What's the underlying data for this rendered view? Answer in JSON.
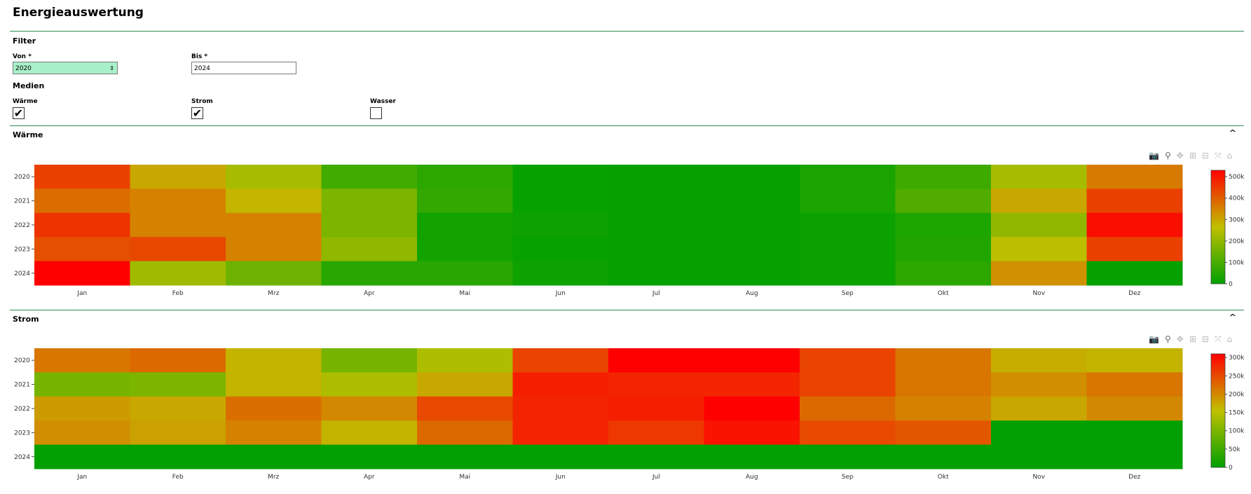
{
  "header": {
    "title": "Energieauswertung"
  },
  "filter": {
    "heading": "Filter",
    "from": {
      "label": "Von *",
      "value": "2020"
    },
    "to": {
      "label": "Bis *",
      "value": "2024"
    },
    "media_heading": "Medien",
    "media": [
      {
        "label": "Wärme",
        "checked": true
      },
      {
        "label": "Strom",
        "checked": true
      },
      {
        "label": "Wasser",
        "checked": false
      }
    ]
  },
  "toolbar_icons": [
    "camera-icon",
    "zoom-icon",
    "pan-icon",
    "zoom-in-icon",
    "zoom-out-icon",
    "autoscale-icon",
    "reset-axes-icon"
  ],
  "panels": [
    {
      "title": "Wärme"
    },
    {
      "title": "Strom"
    }
  ],
  "chart_data": [
    {
      "type": "heatmap",
      "title": "Wärme",
      "x": [
        "Jan",
        "Feb",
        "Mrz",
        "Apr",
        "Mai",
        "Jun",
        "Jul",
        "Aug",
        "Sep",
        "Okt",
        "Nov",
        "Dez"
      ],
      "y": [
        "2020",
        "2021",
        "2022",
        "2023",
        "2024"
      ],
      "z": [
        [
          440000,
          300000,
          230000,
          90000,
          60000,
          10000,
          5000,
          5000,
          35000,
          85000,
          230000,
          360000
        ],
        [
          380000,
          350000,
          280000,
          170000,
          70000,
          10000,
          5000,
          5000,
          35000,
          110000,
          300000,
          440000
        ],
        [
          460000,
          350000,
          350000,
          170000,
          25000,
          20000,
          5000,
          5000,
          15000,
          40000,
          200000,
          510000
        ],
        [
          420000,
          430000,
          350000,
          200000,
          25000,
          10000,
          5000,
          5000,
          15000,
          45000,
          260000,
          440000
        ],
        [
          530000,
          220000,
          150000,
          55000,
          55000,
          20000,
          5000,
          5000,
          15000,
          60000,
          330000,
          5000
        ]
      ],
      "zmin": 0,
      "zmax": 530000,
      "colorbar_ticks": [
        "0",
        "100k",
        "200k",
        "300k",
        "400k",
        "500k"
      ],
      "colorbar_values": [
        0,
        100000,
        200000,
        300000,
        400000,
        500000
      ],
      "colorscale": [
        "#00a000",
        "#c0c000",
        "#ff0000"
      ]
    },
    {
      "type": "heatmap",
      "title": "Strom",
      "x": [
        "Jan",
        "Feb",
        "Mrz",
        "Apr",
        "Mai",
        "Jun",
        "Jul",
        "Aug",
        "Sep",
        "Okt",
        "Nov",
        "Dez"
      ],
      "y": [
        "2020",
        "2021",
        "2022",
        "2023",
        "2024"
      ],
      "z": [
        [
          215000,
          225000,
          165000,
          95000,
          140000,
          255000,
          310000,
          310000,
          255000,
          215000,
          170000,
          165000
        ],
        [
          95000,
          100000,
          165000,
          140000,
          175000,
          285000,
          280000,
          280000,
          255000,
          215000,
          195000,
          215000
        ],
        [
          185000,
          175000,
          220000,
          200000,
          250000,
          280000,
          285000,
          310000,
          225000,
          205000,
          175000,
          200000
        ],
        [
          195000,
          180000,
          205000,
          165000,
          225000,
          280000,
          265000,
          295000,
          250000,
          240000,
          2000,
          2000
        ],
        [
          2000,
          2000,
          2000,
          2000,
          2000,
          2000,
          2000,
          2000,
          2000,
          2000,
          2000,
          2000
        ]
      ],
      "zmin": 0,
      "zmax": 310000,
      "colorbar_ticks": [
        "0",
        "50k",
        "100k",
        "150k",
        "200k",
        "250k",
        "300k"
      ],
      "colorbar_values": [
        0,
        50000,
        100000,
        150000,
        200000,
        250000,
        300000
      ],
      "colorscale": [
        "#00a000",
        "#c0c000",
        "#ff0000"
      ]
    }
  ]
}
